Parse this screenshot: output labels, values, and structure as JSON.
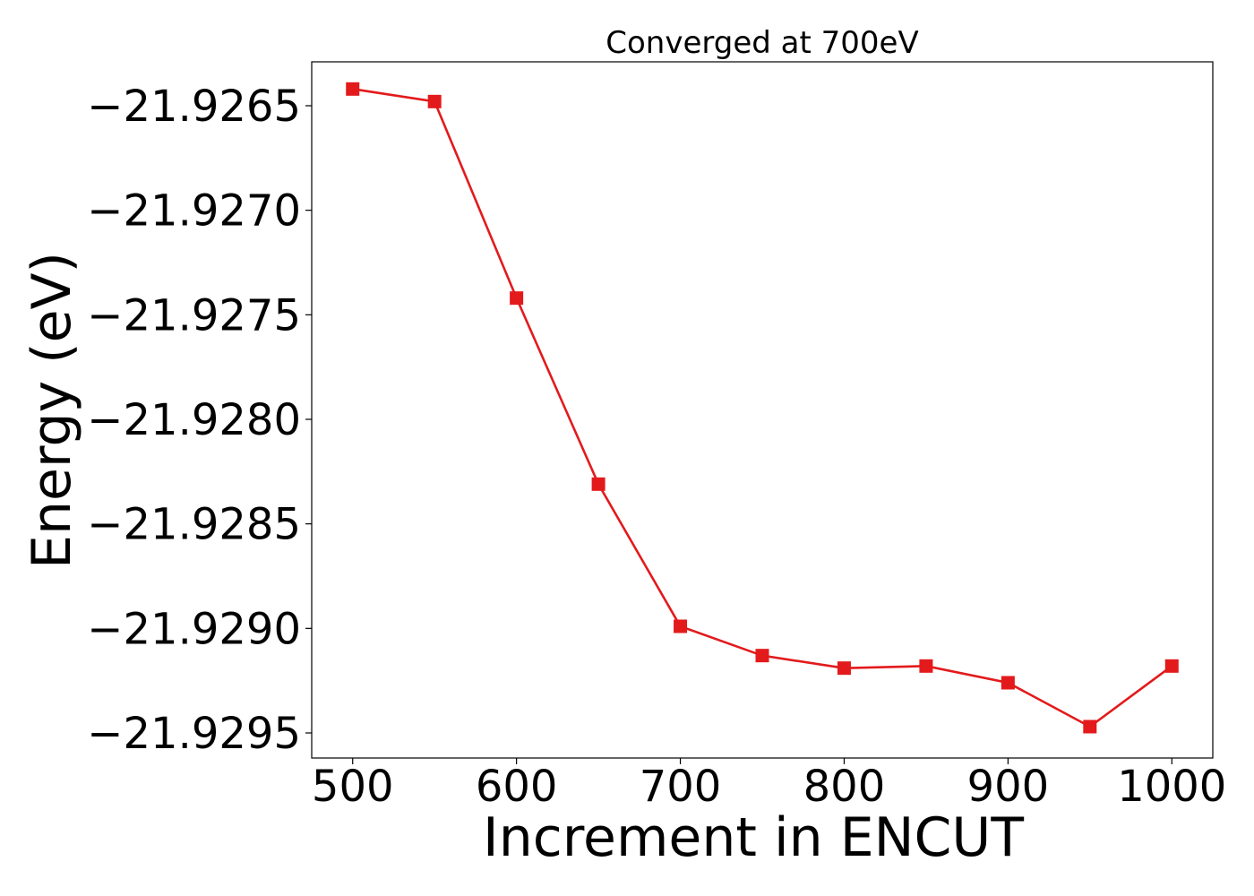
{
  "chart_data": {
    "type": "line",
    "title": "Converged at 700eV",
    "xlabel": "Increment in ENCUT",
    "ylabel": "Energy (eV)",
    "xlim": [
      475,
      1025
    ],
    "ylim": [
      -21.92962,
      -21.92629
    ],
    "x_ticks": [
      500,
      600,
      700,
      800,
      900,
      1000
    ],
    "y_ticks": [
      -21.9265,
      -21.927,
      -21.9275,
      -21.928,
      -21.9285,
      -21.929,
      -21.9295
    ],
    "y_tick_labels": [
      "−21.9265",
      "−21.9270",
      "−21.9275",
      "−21.9280",
      "−21.9285",
      "−21.9290",
      "−21.9295"
    ],
    "x_tick_labels": [
      "500",
      "600",
      "700",
      "800",
      "900",
      "1000"
    ],
    "grid": false,
    "legend": "none",
    "series": [
      {
        "color": "#e31a1c",
        "marker": "square",
        "x": [
          500,
          550,
          600,
          650,
          700,
          750,
          800,
          850,
          900,
          950,
          1000
        ],
        "y": [
          -21.92642,
          -21.92648,
          -21.92742,
          -21.92831,
          -21.92899,
          -21.92913,
          -21.92919,
          -21.92918,
          -21.92926,
          -21.92947,
          -21.92918
        ]
      }
    ]
  }
}
